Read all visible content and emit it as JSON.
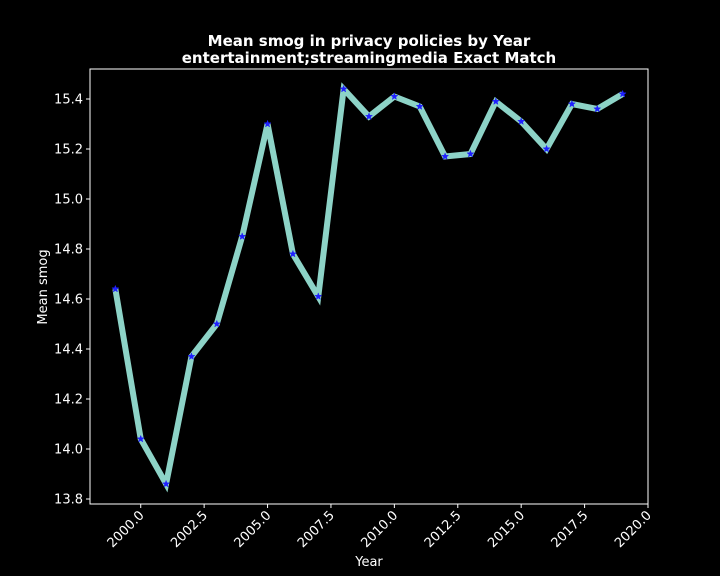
{
  "chart_data": {
    "type": "line",
    "title": "Mean smog in privacy policies by Year",
    "subtitle": "entertainment;streamingmedia Exact Match",
    "xlabel": "Year",
    "ylabel": "Mean smog",
    "xlim": [
      1998.0,
      2020.0
    ],
    "ylim": [
      13.78,
      15.52
    ],
    "xticks": [
      2000.0,
      2002.5,
      2005.0,
      2007.5,
      2010.0,
      2012.5,
      2015.0,
      2017.5,
      2020.0
    ],
    "xtick_labels": [
      "2000.0",
      "2002.5",
      "2005.0",
      "2007.5",
      "2010.0",
      "2012.5",
      "2015.0",
      "2017.5",
      "2020.0"
    ],
    "yticks": [
      13.8,
      14.0,
      14.2,
      14.4,
      14.6,
      14.8,
      15.0,
      15.2,
      15.4
    ],
    "ytick_labels": [
      "13.8",
      "14.0",
      "14.2",
      "14.4",
      "14.6",
      "14.8",
      "15.0",
      "15.2",
      "15.4"
    ],
    "grid": false,
    "line_color": "#8dd3c7",
    "marker_color": "#1f1fff",
    "background": "#000000",
    "series": [
      {
        "x": [
          1999,
          2000,
          2001,
          2002,
          2003,
          2004,
          2005,
          2006,
          2007,
          2008,
          2009,
          2010,
          2011,
          2012,
          2013,
          2014,
          2015,
          2016,
          2017,
          2018,
          2019
        ],
        "values": [
          14.64,
          14.04,
          13.86,
          14.37,
          14.5,
          14.85,
          15.3,
          14.78,
          14.61,
          15.44,
          15.33,
          15.41,
          15.37,
          15.17,
          15.18,
          15.39,
          15.31,
          15.2,
          15.38,
          15.36,
          15.42
        ]
      }
    ]
  }
}
